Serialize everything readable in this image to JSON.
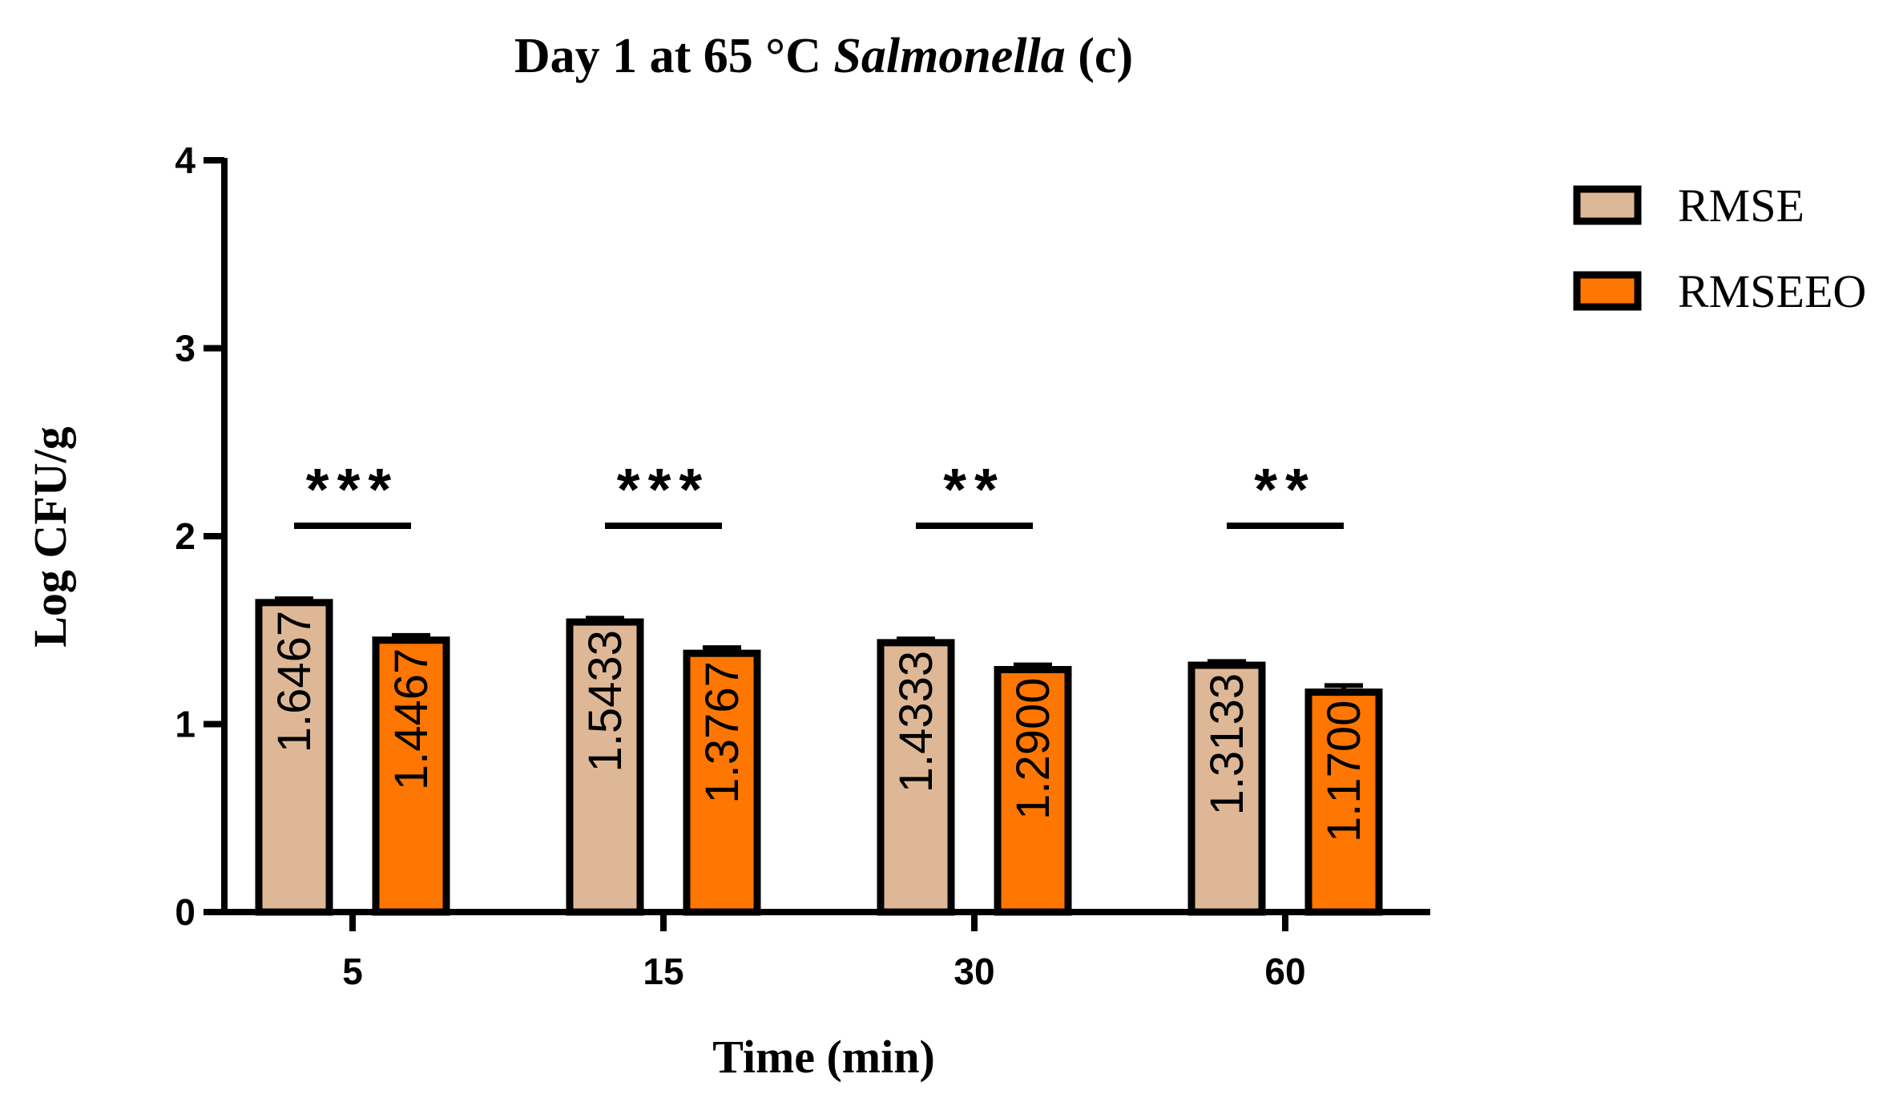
{
  "chart_data": {
    "type": "bar",
    "title_parts": [
      "Day 1 at 65 °C ",
      "Salmonella",
      " (c)"
    ],
    "xlabel": "Time (min)",
    "ylabel": "Log CFU/g",
    "ylim": [
      0,
      4
    ],
    "yticks": [
      "0",
      "1",
      "2",
      "3",
      "4"
    ],
    "categories": [
      "5",
      "15",
      "30",
      "60"
    ],
    "series": [
      {
        "name": "RMSE",
        "color": "#DEB896",
        "values": [
          1.6467,
          1.5433,
          1.4333,
          1.3133
        ],
        "labels": [
          "1.6467",
          "1.5433",
          "1.4333",
          "1.3133"
        ],
        "errors": [
          0.02,
          0.02,
          0.02,
          0.02
        ]
      },
      {
        "name": "RMSEEO",
        "color": "#FF7600",
        "values": [
          1.4467,
          1.3767,
          1.29,
          1.17
        ],
        "labels": [
          "1.4467",
          "1.3767",
          "1.2900",
          "1.1700"
        ],
        "errors": [
          0.025,
          0.03,
          0.025,
          0.035
        ]
      }
    ],
    "significance": [
      "***",
      "***",
      "**",
      "**"
    ],
    "legend_position": "top-right"
  }
}
